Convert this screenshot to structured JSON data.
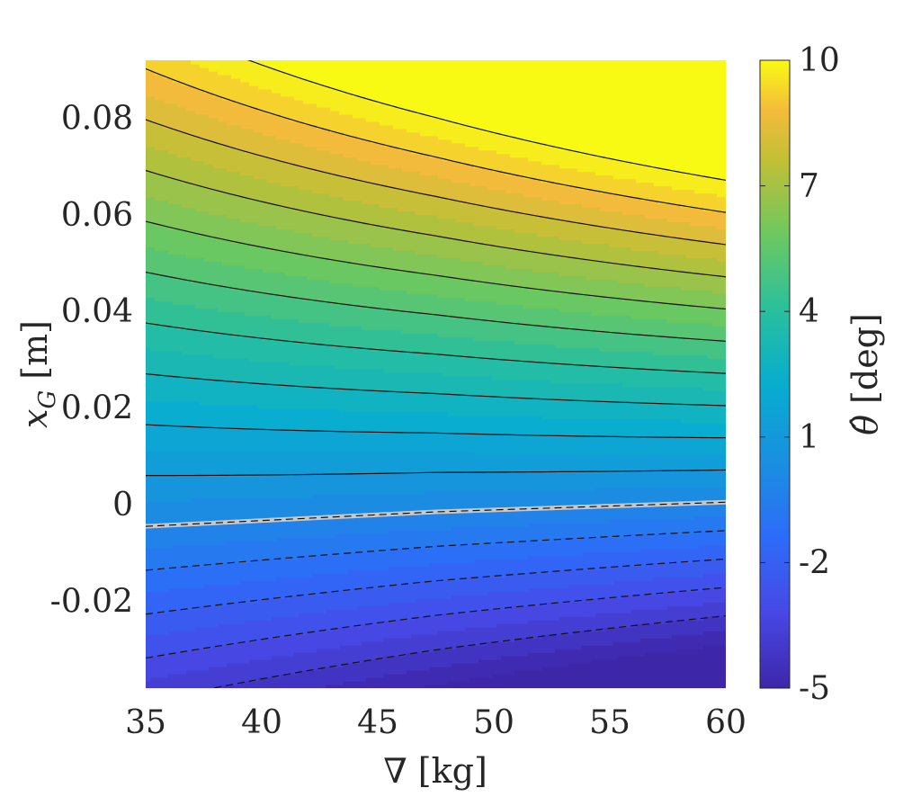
{
  "chart_data": {
    "type": "contour",
    "xlabel": "∇ [kg]",
    "ylabel_main": "x",
    "ylabel_sub": "G",
    "ylabel_unit": "[m]",
    "colorbar_label_symbol": "θ̂",
    "colorbar_label_unit": "[deg]",
    "xlim": [
      35,
      60
    ],
    "ylim": [
      -0.038,
      0.092
    ],
    "x_ticks": [
      35,
      40,
      45,
      50,
      55,
      60
    ],
    "x_tick_labels": [
      "35",
      "40",
      "45",
      "50",
      "55",
      "60"
    ],
    "y_ticks": [
      -0.02,
      0,
      0.02,
      0.04,
      0.06,
      0.08
    ],
    "y_tick_labels": [
      "-0.02",
      "0",
      "0.02",
      "0.04",
      "0.06",
      "0.08"
    ],
    "clim": [
      -5,
      10
    ],
    "colorbar_ticks": [
      -5,
      -2,
      1,
      4,
      7,
      10
    ],
    "colorbar_tick_labels": [
      "-5",
      "-2",
      "1",
      "4",
      "7",
      "10"
    ],
    "colormap": "parula",
    "zero_contour_color": "#c8c8c8",
    "contour_levels_positive_solid": [
      1,
      2,
      3,
      4,
      5,
      6,
      7,
      8,
      9,
      10
    ],
    "contour_levels_negative_dashed": [
      -1,
      -2,
      -3,
      -4
    ],
    "zero_line_xg": [
      {
        "x": 35,
        "y": -0.0045
      },
      {
        "x": 47.5,
        "y": -0.0015
      },
      {
        "x": 60,
        "y": 0.0005
      }
    ]
  }
}
